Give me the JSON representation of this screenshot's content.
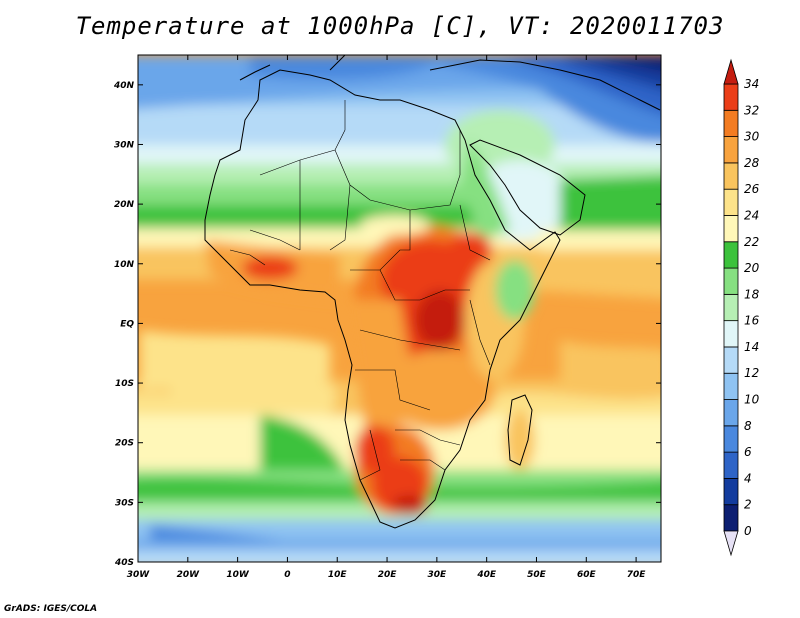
{
  "title": "Temperature at 1000hPa [C], VT: 2020011703",
  "credit": "GrADS: IGES/COLA",
  "map": {
    "lon_range": [
      -30,
      75
    ],
    "lat_range": [
      -40,
      45
    ],
    "lon_ticks": [
      "30W",
      "20W",
      "10W",
      "0",
      "10E",
      "20E",
      "30E",
      "40E",
      "50E",
      "60E",
      "70E"
    ],
    "lat_ticks": [
      "40S",
      "30S",
      "20S",
      "10S",
      "EQ",
      "10N",
      "20N",
      "30N",
      "40N"
    ],
    "variable": "Temperature at 1000hPa",
    "units": "C"
  },
  "colorbar": {
    "labels": [
      "0",
      "2",
      "4",
      "6",
      "8",
      "10",
      "12",
      "14",
      "16",
      "18",
      "20",
      "22",
      "24",
      "26",
      "28",
      "30",
      "32",
      "34"
    ],
    "colors": [
      "#e6e1f5",
      "#0d1f72",
      "#133c9e",
      "#2e64c7",
      "#4a88de",
      "#6aa6ea",
      "#8fc3f2",
      "#b5daf7",
      "#e1f6f8",
      "#b6efb4",
      "#86e081",
      "#3cc23c",
      "#fff7b8",
      "#fde38a",
      "#f9c45e",
      "#f8a33e",
      "#f37c22",
      "#eb3e18",
      "#c41d10"
    ]
  }
}
